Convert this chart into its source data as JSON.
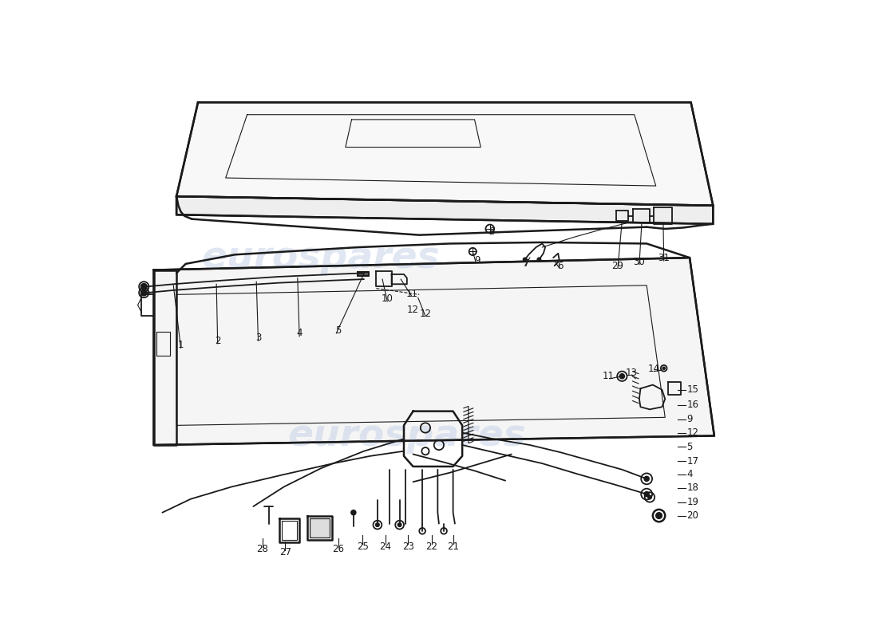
{
  "bg": "#ffffff",
  "wm_color": "#c8d4e8",
  "wm_alpha": 0.55,
  "lc": "#1a1a1a",
  "lw": 1.3,
  "lw_thin": 0.8,
  "lw_thick": 1.8,
  "fs_label": 8.5,
  "fig_w": 11.0,
  "fig_h": 8.0
}
